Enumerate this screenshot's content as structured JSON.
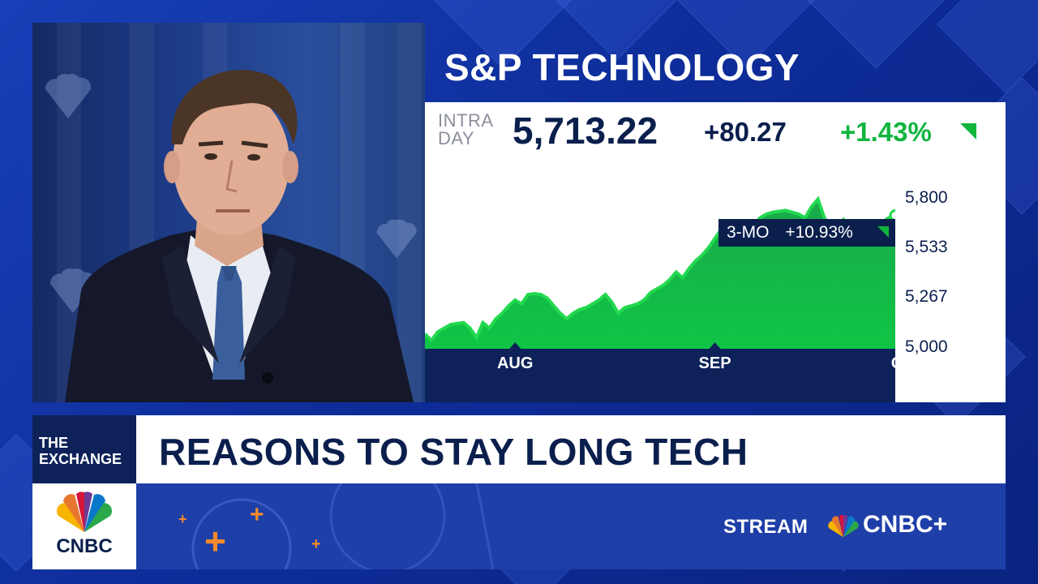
{
  "broadcast": {
    "title": "S&P TECHNOLOGY",
    "quote": {
      "label_line1": "INTRA",
      "label_line2": "DAY",
      "price": "5,713.22",
      "change": "+80.27",
      "change_pct": "+1.43%"
    },
    "period_badge": {
      "period": "3-MO",
      "change": "+10.93%"
    },
    "show_tag_line1": "THE",
    "show_tag_line2": "EXCHANGE",
    "headline": "REASONS TO STAY LONG TECH",
    "network": "CNBC",
    "stream_label": "STREAM",
    "stream_brand": "CNBC+"
  },
  "colors": {
    "navy": "#0b1f4d",
    "green": "#10b53e",
    "area_fill": "#16b94a",
    "orange_accent": "#f58a2a"
  },
  "chart_data": {
    "type": "area",
    "title": "S&P TECHNOLOGY",
    "xlabel": "",
    "ylabel": "",
    "ylim": [
      5000,
      5850
    ],
    "yticks": [
      "5,800",
      "5,533",
      "5,267",
      "5,000"
    ],
    "xticks": [
      "AUG",
      "SEP",
      "OCT"
    ],
    "x_tick_positions": [
      14,
      45,
      75
    ],
    "grid": false,
    "series": [
      {
        "values": [
          5080,
          5045,
          5090,
          5110,
          5130,
          5135,
          5140,
          5110,
          5060,
          5140,
          5110,
          5160,
          5190,
          5230,
          5260,
          5240,
          5290,
          5295,
          5290,
          5270,
          5230,
          5190,
          5160,
          5190,
          5210,
          5220,
          5240,
          5260,
          5290,
          5250,
          5190,
          5220,
          5230,
          5240,
          5260,
          5300,
          5320,
          5340,
          5370,
          5410,
          5380,
          5430,
          5470,
          5500,
          5540,
          5590,
          5640,
          5610,
          5590,
          5600,
          5620,
          5660,
          5700,
          5720,
          5730,
          5735,
          5740,
          5730,
          5720,
          5700,
          5760,
          5800,
          5700,
          5650,
          5600,
          5690,
          5650,
          5620,
          5640,
          5660,
          5670,
          5680,
          5700,
          5713.22
        ]
      }
    ]
  }
}
